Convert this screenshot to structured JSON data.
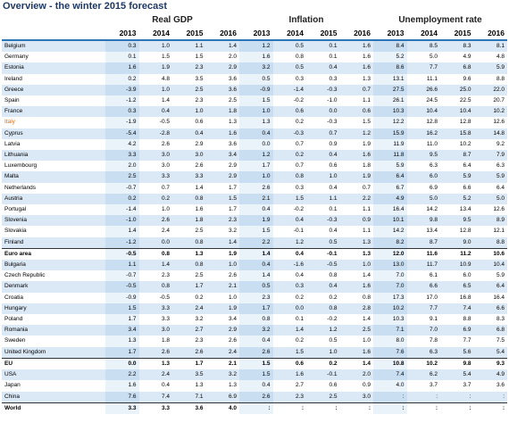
{
  "table": {
    "title": "Overview - the winter 2015 forecast",
    "groups": [
      "Real GDP",
      "Inflation",
      "Unemployment rate"
    ],
    "years": [
      "2013",
      "2014",
      "2015",
      "2016",
      "2013",
      "2014",
      "2015",
      "2016",
      "2013",
      "2014",
      "2015",
      "2016"
    ],
    "rows": [
      [
        "Belgium",
        "0.3",
        "1.0",
        "1.1",
        "1.4",
        "1.2",
        "0.5",
        "0.1",
        "1.6",
        "8.4",
        "8.5",
        "8.3",
        "8.1"
      ],
      [
        "Germany",
        "0.1",
        "1.5",
        "1.5",
        "2.0",
        "1.6",
        "0.8",
        "0.1",
        "1.6",
        "5.2",
        "5.0",
        "4.9",
        "4.8"
      ],
      [
        "Estonia",
        "1.6",
        "1.9",
        "2.3",
        "2.9",
        "3.2",
        "0.5",
        "0.4",
        "1.6",
        "8.6",
        "7.7",
        "6.8",
        "5.9"
      ],
      [
        "Ireland",
        "0.2",
        "4.8",
        "3.5",
        "3.6",
        "0.5",
        "0.3",
        "0.3",
        "1.3",
        "13.1",
        "11.1",
        "9.6",
        "8.8"
      ],
      [
        "Greece",
        "-3.9",
        "1.0",
        "2.5",
        "3.6",
        "-0.9",
        "-1.4",
        "-0.3",
        "0.7",
        "27.5",
        "26.6",
        "25.0",
        "22.0"
      ],
      [
        "Spain",
        "-1.2",
        "1.4",
        "2.3",
        "2.5",
        "1.5",
        "-0.2",
        "-1.0",
        "1.1",
        "26.1",
        "24.5",
        "22.5",
        "20.7"
      ],
      [
        "France",
        "0.3",
        "0.4",
        "1.0",
        "1.8",
        "1.0",
        "0.6",
        "0.0",
        "0.6",
        "10.3",
        "10.4",
        "10.4",
        "10.2"
      ],
      [
        "Italy",
        "-1.9",
        "-0.5",
        "0.6",
        "1.3",
        "1.3",
        "0.2",
        "-0.3",
        "1.5",
        "12.2",
        "12.8",
        "12.8",
        "12.6"
      ],
      [
        "Cyprus",
        "-5.4",
        "-2.8",
        "0.4",
        "1.6",
        "0.4",
        "-0.3",
        "0.7",
        "1.2",
        "15.9",
        "16.2",
        "15.8",
        "14.8"
      ],
      [
        "Latvia",
        "4.2",
        "2.6",
        "2.9",
        "3.6",
        "0.0",
        "0.7",
        "0.9",
        "1.9",
        "11.9",
        "11.0",
        "10.2",
        "9.2"
      ],
      [
        "Lithuania",
        "3.3",
        "3.0",
        "3.0",
        "3.4",
        "1.2",
        "0.2",
        "0.4",
        "1.6",
        "11.8",
        "9.5",
        "8.7",
        "7.9"
      ],
      [
        "Luxembourg",
        "2.0",
        "3.0",
        "2.6",
        "2.9",
        "1.7",
        "0.7",
        "0.6",
        "1.8",
        "5.9",
        "6.3",
        "6.4",
        "6.3"
      ],
      [
        "Malta",
        "2.5",
        "3.3",
        "3.3",
        "2.9",
        "1.0",
        "0.8",
        "1.0",
        "1.9",
        "6.4",
        "6.0",
        "5.9",
        "5.9"
      ],
      [
        "Netherlands",
        "-0.7",
        "0.7",
        "1.4",
        "1.7",
        "2.6",
        "0.3",
        "0.4",
        "0.7",
        "6.7",
        "6.9",
        "6.6",
        "6.4"
      ],
      [
        "Austria",
        "0.2",
        "0.2",
        "0.8",
        "1.5",
        "2.1",
        "1.5",
        "1.1",
        "2.2",
        "4.9",
        "5.0",
        "5.2",
        "5.0"
      ],
      [
        "Portugal",
        "-1.4",
        "1.0",
        "1.6",
        "1.7",
        "0.4",
        "-0.2",
        "0.1",
        "1.1",
        "16.4",
        "14.2",
        "13.4",
        "12.6"
      ],
      [
        "Slovenia",
        "-1.0",
        "2.6",
        "1.8",
        "2.3",
        "1.9",
        "0.4",
        "-0.3",
        "0.9",
        "10.1",
        "9.8",
        "9.5",
        "8.9"
      ],
      [
        "Slovakia",
        "1.4",
        "2.4",
        "2.5",
        "3.2",
        "1.5",
        "-0.1",
        "0.4",
        "1.1",
        "14.2",
        "13.4",
        "12.8",
        "12.1"
      ],
      [
        "Finland",
        "-1.2",
        "0.0",
        "0.8",
        "1.4",
        "2.2",
        "1.2",
        "0.5",
        "1.3",
        "8.2",
        "8.7",
        "9.0",
        "8.8"
      ],
      [
        "Euro area",
        "-0.5",
        "0.8",
        "1.3",
        "1.9",
        "1.4",
        "0.4",
        "-0.1",
        "1.3",
        "12.0",
        "11.6",
        "11.2",
        "10.6"
      ],
      [
        "Bulgaria",
        "1.1",
        "1.4",
        "0.8",
        "1.0",
        "0.4",
        "-1.6",
        "-0.5",
        "1.0",
        "13.0",
        "11.7",
        "10.9",
        "10.4"
      ],
      [
        "Czech Republic",
        "-0.7",
        "2.3",
        "2.5",
        "2.6",
        "1.4",
        "0.4",
        "0.8",
        "1.4",
        "7.0",
        "6.1",
        "6.0",
        "5.9"
      ],
      [
        "Denmark",
        "-0.5",
        "0.8",
        "1.7",
        "2.1",
        "0.5",
        "0.3",
        "0.4",
        "1.6",
        "7.0",
        "6.6",
        "6.5",
        "6.4"
      ],
      [
        "Croatia",
        "-0.9",
        "-0.5",
        "0.2",
        "1.0",
        "2.3",
        "0.2",
        "0.2",
        "0.8",
        "17.3",
        "17.0",
        "16.8",
        "16.4"
      ],
      [
        "Hungary",
        "1.5",
        "3.3",
        "2.4",
        "1.9",
        "1.7",
        "0.0",
        "0.8",
        "2.8",
        "10.2",
        "7.7",
        "7.4",
        "6.6"
      ],
      [
        "Poland",
        "1.7",
        "3.3",
        "3.2",
        "3.4",
        "0.8",
        "0.1",
        "-0.2",
        "1.4",
        "10.3",
        "9.1",
        "8.8",
        "8.3"
      ],
      [
        "Romania",
        "3.4",
        "3.0",
        "2.7",
        "2.9",
        "3.2",
        "1.4",
        "1.2",
        "2.5",
        "7.1",
        "7.0",
        "6.9",
        "6.8"
      ],
      [
        "Sweden",
        "1.3",
        "1.8",
        "2.3",
        "2.6",
        "0.4",
        "0.2",
        "0.5",
        "1.0",
        "8.0",
        "7.8",
        "7.7",
        "7.5"
      ],
      [
        "United Kingdom",
        "1.7",
        "2.6",
        "2.6",
        "2.4",
        "2.6",
        "1.5",
        "1.0",
        "1.6",
        "7.6",
        "6.3",
        "5.6",
        "5.4"
      ],
      [
        "EU",
        "0.0",
        "1.3",
        "1.7",
        "2.1",
        "1.5",
        "0.6",
        "0.2",
        "1.4",
        "10.8",
        "10.2",
        "9.8",
        "9.3"
      ],
      [
        "USA",
        "2.2",
        "2.4",
        "3.5",
        "3.2",
        "1.5",
        "1.6",
        "-0.1",
        "2.0",
        "7.4",
        "6.2",
        "5.4",
        "4.9"
      ],
      [
        "Japan",
        "1.6",
        "0.4",
        "1.3",
        "1.3",
        "0.4",
        "2.7",
        "0.6",
        "0.9",
        "4.0",
        "3.7",
        "3.7",
        "3.6"
      ],
      [
        "China",
        "7.6",
        "7.4",
        "7.1",
        "6.9",
        "2.6",
        "2.3",
        "2.5",
        "3.0",
        ":",
        ":",
        ":",
        ":"
      ],
      [
        "World",
        "3.3",
        "3.3",
        "3.6",
        "4.0",
        ":",
        ":",
        ":",
        ":",
        ":",
        ":",
        ":",
        ":"
      ]
    ]
  }
}
